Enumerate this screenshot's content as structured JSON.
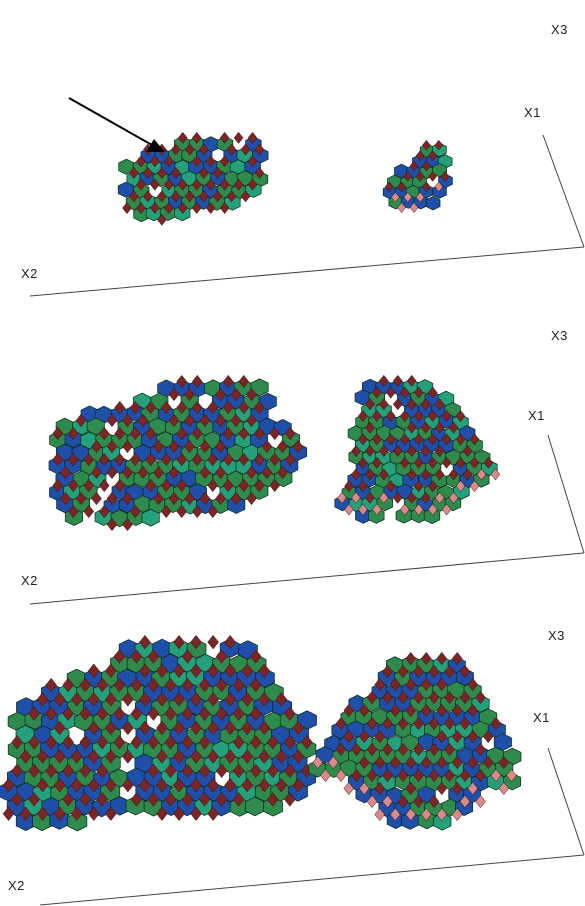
{
  "panels": [
    {
      "axes": {
        "x1": "X1",
        "x2": "X2",
        "x3": "X3"
      },
      "arrow": true
    },
    {
      "axes": {
        "x1": "X1",
        "x2": "X2",
        "x3": "X3"
      },
      "arrow": false
    },
    {
      "axes": {
        "x1": "X1",
        "x2": "X2",
        "x3": "X3"
      },
      "arrow": false
    }
  ],
  "colors": {
    "hex_green": "#2f8a4d",
    "hex_blue": "#1f4fa8",
    "hex_teal": "#24a07a",
    "rhombus_dark": "#7a2626",
    "rhombus_pink": "#d98a8a",
    "edge": "#0d2a1a",
    "axis": "#444444"
  }
}
